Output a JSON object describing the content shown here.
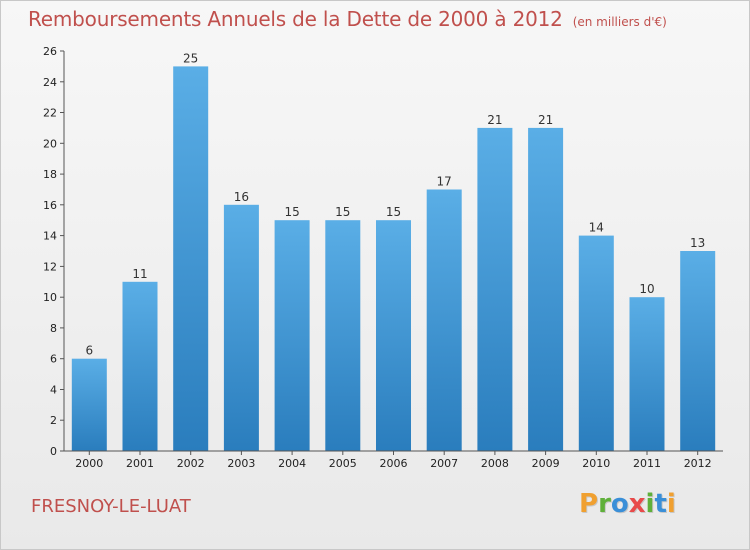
{
  "header": {
    "title": "Remboursements Annuels de la Dette de 2000 à 2012",
    "unit": "(en milliers d'€)"
  },
  "footer": {
    "commune": "FRESNOY-LE-LUAT",
    "brand": "Proxiti"
  },
  "colors": {
    "title": "#c0504d",
    "bar_top": "#5aaee6",
    "bar_bottom": "#2a7dbd",
    "brand_letters": [
      "#f0a030",
      "#5fb03a",
      "#3a8fd8",
      "#e84a4a",
      "#5fb03a",
      "#3a8fd8",
      "#f0a030"
    ]
  },
  "chart_data": {
    "type": "bar",
    "title": "Remboursements Annuels de la Dette de 2000 à 2012",
    "subtitle": "(en milliers d'€)",
    "categories": [
      "2000",
      "2001",
      "2002",
      "2003",
      "2004",
      "2005",
      "2006",
      "2007",
      "2008",
      "2009",
      "2010",
      "2011",
      "2012"
    ],
    "values": [
      6,
      11,
      25,
      16,
      15,
      15,
      15,
      17,
      21,
      21,
      14,
      10,
      13
    ],
    "ylim": [
      0,
      26
    ],
    "yticks": [
      0,
      2,
      4,
      6,
      8,
      10,
      12,
      14,
      16,
      18,
      20,
      22,
      24,
      26
    ],
    "grid": false,
    "legend": "none"
  }
}
